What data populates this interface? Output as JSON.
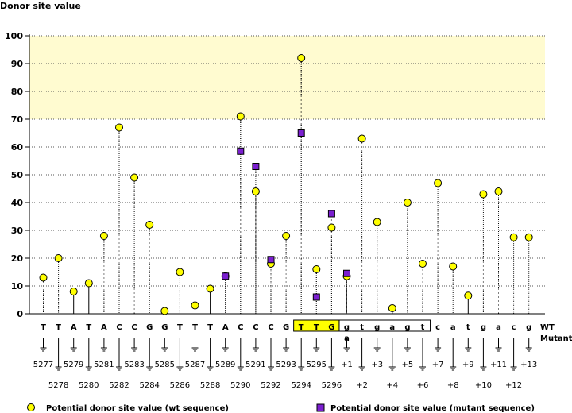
{
  "chart_data": {
    "type": "scatter",
    "title": "Donor site value",
    "ylim": [
      0,
      100
    ],
    "yticks": [
      0,
      10,
      20,
      30,
      40,
      50,
      60,
      70,
      80,
      90,
      100
    ],
    "highlight_band": [
      70,
      100
    ],
    "bases": [
      "T",
      "T",
      "A",
      "T",
      "A",
      "C",
      "C",
      "G",
      "G",
      "T",
      "T",
      "T",
      "A",
      "C",
      "C",
      "C",
      "G",
      "T",
      "T",
      "G",
      "g",
      "t",
      "g",
      "a",
      "g",
      "t",
      "c",
      "a",
      "t",
      "g",
      "a",
      "c",
      "g"
    ],
    "positions": [
      "5277",
      "5278",
      "5279",
      "5280",
      "5281",
      "5282",
      "5283",
      "5284",
      "5285",
      "5286",
      "5287",
      "5288",
      "5289",
      "5290",
      "5291",
      "5292",
      "5293",
      "5294",
      "5295",
      "5296",
      "+1",
      "+2",
      "+3",
      "+4",
      "+5",
      "+6",
      "+7",
      "+8",
      "+9",
      "+10",
      "+11",
      "+12",
      "+13"
    ],
    "wt_values": [
      13,
      20,
      8,
      11,
      28,
      67,
      49,
      32,
      1,
      15,
      3,
      9,
      13.5,
      71,
      44,
      18,
      28,
      92,
      16,
      31,
      13.5,
      63,
      33,
      2,
      40,
      18,
      47,
      17,
      6.5,
      43,
      44,
      27.5,
      27.5
    ],
    "mutant_points": [
      {
        "index": 12,
        "value": 13.5
      },
      {
        "index": 13,
        "value": 58.5
      },
      {
        "index": 14,
        "value": 53
      },
      {
        "index": 15,
        "value": 19.5
      },
      {
        "index": 17,
        "value": 65
      },
      {
        "index": 18,
        "value": 6
      },
      {
        "index": 19,
        "value": 36
      },
      {
        "index": 20,
        "value": 14.5
      }
    ],
    "mutant_base": {
      "index": 20,
      "letter": "a"
    },
    "exon_box_range": [
      17,
      19
    ],
    "intron_box_range": [
      20,
      25
    ],
    "row_labels": {
      "wt": "WT",
      "mutant": "Mutant"
    },
    "series": [
      {
        "name": "Potential donor site value (wt sequence)",
        "marker": "circle",
        "color": "#ffff00"
      },
      {
        "name": "Potential donor site value (mutant sequence)",
        "marker": "square",
        "color": "#7b1fd0"
      }
    ]
  },
  "colors": {
    "band": "#fffbd0",
    "exon_box": "#ffff00",
    "wt_marker": "#ffff00",
    "mutant_marker": "#7b1fd0",
    "mutant_text": "#0000cc"
  }
}
